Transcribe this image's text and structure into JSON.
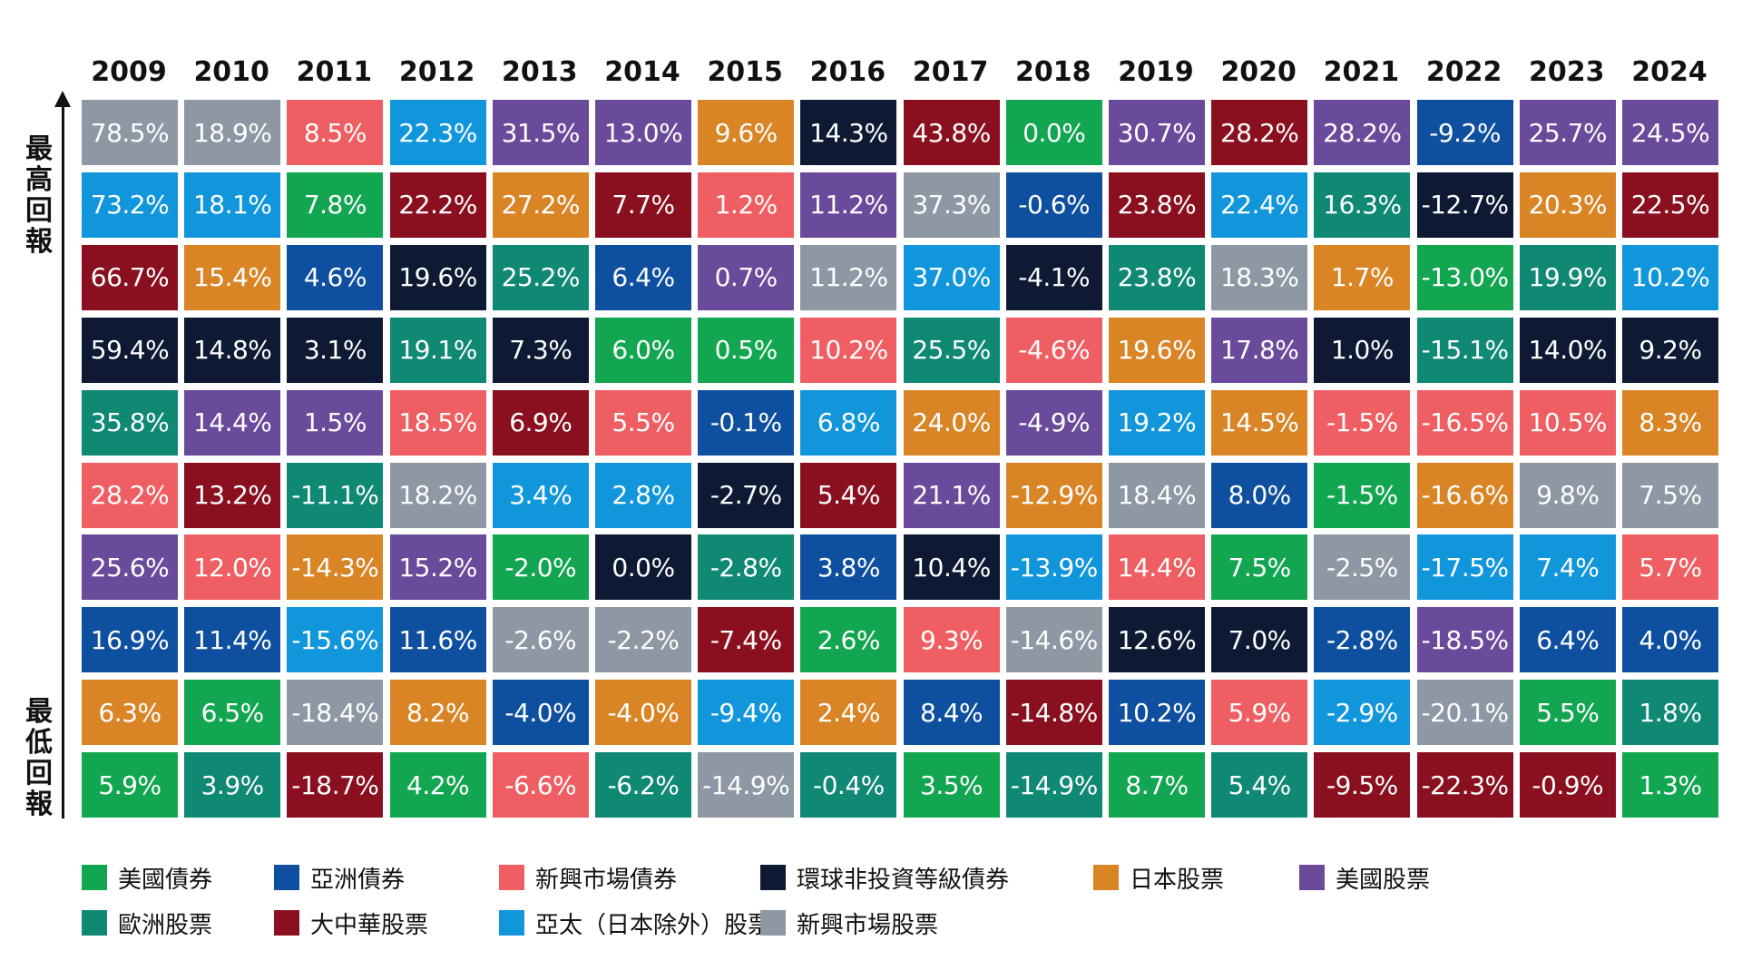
{
  "chart_data": {
    "type": "table",
    "axis_label_top": "最高回報",
    "axis_label_bottom": "最低回報",
    "years": [
      "2009",
      "2010",
      "2011",
      "2012",
      "2013",
      "2014",
      "2015",
      "2016",
      "2017",
      "2018",
      "2019",
      "2020",
      "2021",
      "2022",
      "2023",
      "2024"
    ],
    "legend": [
      {
        "key": "us_bond",
        "label": "美國債券",
        "color": "#12a650"
      },
      {
        "key": "asia_bond",
        "label": "亞洲債券",
        "color": "#0f4f9f"
      },
      {
        "key": "em_bond",
        "label": "新興市場債券",
        "color": "#ef5e63"
      },
      {
        "key": "global_hy",
        "label": "環球非投資等級債券",
        "color": "#0e1a33"
      },
      {
        "key": "japan_eq",
        "label": "日本股票",
        "color": "#d98526"
      },
      {
        "key": "us_eq",
        "label": "美國股票",
        "color": "#6a4a9a"
      },
      {
        "key": "europe_eq",
        "label": "歐洲股票",
        "color": "#0f8874"
      },
      {
        "key": "china_eq",
        "label": "大中華股票",
        "color": "#8a1020"
      },
      {
        "key": "apac_eq",
        "label": "亞太（日本除外）股票",
        "color": "#1196dc"
      },
      {
        "key": "em_eq",
        "label": "新興市場股票",
        "color": "#8d98a4"
      }
    ],
    "columns": [
      [
        [
          "em_eq",
          "78.5%"
        ],
        [
          "apac_eq",
          "73.2%"
        ],
        [
          "china_eq",
          "66.7%"
        ],
        [
          "global_hy",
          "59.4%"
        ],
        [
          "europe_eq",
          "35.8%"
        ],
        [
          "em_bond",
          "28.2%"
        ],
        [
          "us_eq",
          "25.6%"
        ],
        [
          "asia_bond",
          "16.9%"
        ],
        [
          "japan_eq",
          "6.3%"
        ],
        [
          "us_bond",
          "5.9%"
        ]
      ],
      [
        [
          "em_eq",
          "18.9%"
        ],
        [
          "apac_eq",
          "18.1%"
        ],
        [
          "japan_eq",
          "15.4%"
        ],
        [
          "global_hy",
          "14.8%"
        ],
        [
          "us_eq",
          "14.4%"
        ],
        [
          "china_eq",
          "13.2%"
        ],
        [
          "em_bond",
          "12.0%"
        ],
        [
          "asia_bond",
          "11.4%"
        ],
        [
          "us_bond",
          "6.5%"
        ],
        [
          "europe_eq",
          "3.9%"
        ]
      ],
      [
        [
          "em_bond",
          "8.5%"
        ],
        [
          "us_bond",
          "7.8%"
        ],
        [
          "asia_bond",
          "4.6%"
        ],
        [
          "global_hy",
          "3.1%"
        ],
        [
          "us_eq",
          "1.5%"
        ],
        [
          "europe_eq",
          "-11.1%"
        ],
        [
          "japan_eq",
          "-14.3%"
        ],
        [
          "apac_eq",
          "-15.6%"
        ],
        [
          "em_eq",
          "-18.4%"
        ],
        [
          "china_eq",
          "-18.7%"
        ]
      ],
      [
        [
          "apac_eq",
          "22.3%"
        ],
        [
          "china_eq",
          "22.2%"
        ],
        [
          "global_hy",
          "19.6%"
        ],
        [
          "europe_eq",
          "19.1%"
        ],
        [
          "em_bond",
          "18.5%"
        ],
        [
          "em_eq",
          "18.2%"
        ],
        [
          "us_eq",
          "15.2%"
        ],
        [
          "asia_bond",
          "11.6%"
        ],
        [
          "japan_eq",
          "8.2%"
        ],
        [
          "us_bond",
          "4.2%"
        ]
      ],
      [
        [
          "us_eq",
          "31.5%"
        ],
        [
          "japan_eq",
          "27.2%"
        ],
        [
          "europe_eq",
          "25.2%"
        ],
        [
          "global_hy",
          "7.3%"
        ],
        [
          "china_eq",
          "6.9%"
        ],
        [
          "apac_eq",
          "3.4%"
        ],
        [
          "us_bond",
          "-2.0%"
        ],
        [
          "em_eq",
          "-2.6%"
        ],
        [
          "asia_bond",
          "-4.0%"
        ],
        [
          "em_bond",
          "-6.6%"
        ]
      ],
      [
        [
          "us_eq",
          "13.0%"
        ],
        [
          "china_eq",
          "7.7%"
        ],
        [
          "asia_bond",
          "6.4%"
        ],
        [
          "us_bond",
          "6.0%"
        ],
        [
          "em_bond",
          "5.5%"
        ],
        [
          "apac_eq",
          "2.8%"
        ],
        [
          "global_hy",
          "0.0%"
        ],
        [
          "em_eq",
          "-2.2%"
        ],
        [
          "japan_eq",
          "-4.0%"
        ],
        [
          "europe_eq",
          "-6.2%"
        ]
      ],
      [
        [
          "japan_eq",
          "9.6%"
        ],
        [
          "em_bond",
          "1.2%"
        ],
        [
          "us_eq",
          "0.7%"
        ],
        [
          "us_bond",
          "0.5%"
        ],
        [
          "asia_bond",
          "-0.1%"
        ],
        [
          "global_hy",
          "-2.7%"
        ],
        [
          "europe_eq",
          "-2.8%"
        ],
        [
          "china_eq",
          "-7.4%"
        ],
        [
          "apac_eq",
          "-9.4%"
        ],
        [
          "em_eq",
          "-14.9%"
        ]
      ],
      [
        [
          "global_hy",
          "14.3%"
        ],
        [
          "us_eq",
          "11.2%"
        ],
        [
          "em_eq",
          "11.2%"
        ],
        [
          "em_bond",
          "10.2%"
        ],
        [
          "apac_eq",
          "6.8%"
        ],
        [
          "china_eq",
          "5.4%"
        ],
        [
          "asia_bond",
          "3.8%"
        ],
        [
          "us_bond",
          "2.6%"
        ],
        [
          "japan_eq",
          "2.4%"
        ],
        [
          "europe_eq",
          "-0.4%"
        ]
      ],
      [
        [
          "china_eq",
          "43.8%"
        ],
        [
          "em_eq",
          "37.3%"
        ],
        [
          "apac_eq",
          "37.0%"
        ],
        [
          "europe_eq",
          "25.5%"
        ],
        [
          "japan_eq",
          "24.0%"
        ],
        [
          "us_eq",
          "21.1%"
        ],
        [
          "global_hy",
          "10.4%"
        ],
        [
          "em_bond",
          "9.3%"
        ],
        [
          "asia_bond",
          "8.4%"
        ],
        [
          "us_bond",
          "3.5%"
        ]
      ],
      [
        [
          "us_bond",
          "0.0%"
        ],
        [
          "asia_bond",
          "-0.6%"
        ],
        [
          "global_hy",
          "-4.1%"
        ],
        [
          "em_bond",
          "-4.6%"
        ],
        [
          "us_eq",
          "-4.9%"
        ],
        [
          "japan_eq",
          "-12.9%"
        ],
        [
          "apac_eq",
          "-13.9%"
        ],
        [
          "em_eq",
          "-14.6%"
        ],
        [
          "china_eq",
          "-14.8%"
        ],
        [
          "europe_eq",
          "-14.9%"
        ]
      ],
      [
        [
          "us_eq",
          "30.7%"
        ],
        [
          "china_eq",
          "23.8%"
        ],
        [
          "europe_eq",
          "23.8%"
        ],
        [
          "japan_eq",
          "19.6%"
        ],
        [
          "apac_eq",
          "19.2%"
        ],
        [
          "em_eq",
          "18.4%"
        ],
        [
          "em_bond",
          "14.4%"
        ],
        [
          "global_hy",
          "12.6%"
        ],
        [
          "asia_bond",
          "10.2%"
        ],
        [
          "us_bond",
          "8.7%"
        ]
      ],
      [
        [
          "china_eq",
          "28.2%"
        ],
        [
          "apac_eq",
          "22.4%"
        ],
        [
          "em_eq",
          "18.3%"
        ],
        [
          "us_eq",
          "17.8%"
        ],
        [
          "japan_eq",
          "14.5%"
        ],
        [
          "asia_bond",
          "8.0%"
        ],
        [
          "us_bond",
          "7.5%"
        ],
        [
          "global_hy",
          "7.0%"
        ],
        [
          "em_bond",
          "5.9%"
        ],
        [
          "europe_eq",
          "5.4%"
        ]
      ],
      [
        [
          "us_eq",
          "28.2%"
        ],
        [
          "europe_eq",
          "16.3%"
        ],
        [
          "japan_eq",
          "1.7%"
        ],
        [
          "global_hy",
          "1.0%"
        ],
        [
          "em_bond",
          "-1.5%"
        ],
        [
          "us_bond",
          "-1.5%"
        ],
        [
          "em_eq",
          "-2.5%"
        ],
        [
          "asia_bond",
          "-2.8%"
        ],
        [
          "apac_eq",
          "-2.9%"
        ],
        [
          "china_eq",
          "-9.5%"
        ]
      ],
      [
        [
          "asia_bond",
          "-9.2%"
        ],
        [
          "global_hy",
          "-12.7%"
        ],
        [
          "us_bond",
          "-13.0%"
        ],
        [
          "europe_eq",
          "-15.1%"
        ],
        [
          "em_bond",
          "-16.5%"
        ],
        [
          "japan_eq",
          "-16.6%"
        ],
        [
          "apac_eq",
          "-17.5%"
        ],
        [
          "us_eq",
          "-18.5%"
        ],
        [
          "em_eq",
          "-20.1%"
        ],
        [
          "china_eq",
          "-22.3%"
        ]
      ],
      [
        [
          "us_eq",
          "25.7%"
        ],
        [
          "japan_eq",
          "20.3%"
        ],
        [
          "europe_eq",
          "19.9%"
        ],
        [
          "global_hy",
          "14.0%"
        ],
        [
          "em_bond",
          "10.5%"
        ],
        [
          "em_eq",
          "9.8%"
        ],
        [
          "apac_eq",
          "7.4%"
        ],
        [
          "asia_bond",
          "6.4%"
        ],
        [
          "us_bond",
          "5.5%"
        ],
        [
          "china_eq",
          "-0.9%"
        ]
      ],
      [
        [
          "us_eq",
          "24.5%"
        ],
        [
          "china_eq",
          "22.5%"
        ],
        [
          "apac_eq",
          "10.2%"
        ],
        [
          "global_hy",
          "9.2%"
        ],
        [
          "japan_eq",
          "8.3%"
        ],
        [
          "em_eq",
          "7.5%"
        ],
        [
          "em_bond",
          "5.7%"
        ],
        [
          "asia_bond",
          "4.0%"
        ],
        [
          "europe_eq",
          "1.8%"
        ],
        [
          "us_bond",
          "1.3%"
        ]
      ]
    ]
  }
}
